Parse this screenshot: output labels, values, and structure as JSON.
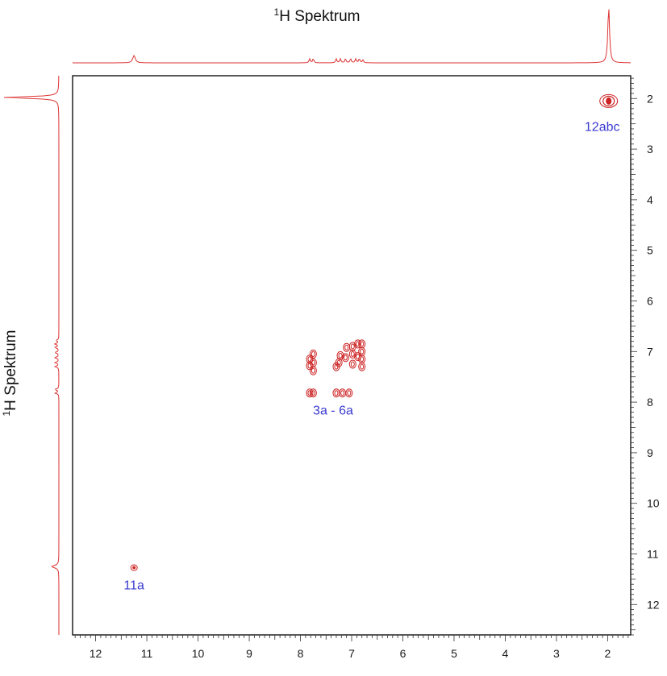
{
  "chart_data": {
    "type": "scatter",
    "title": "",
    "top_projection_label": {
      "sup": "1",
      "text": "H Spektrum"
    },
    "left_projection_label": {
      "sup": "1",
      "text": "H Spektrum"
    },
    "xlabel": "",
    "ylabel": "",
    "xlim": [
      12.45,
      1.55
    ],
    "ylim": [
      1.55,
      12.6
    ],
    "x_ticks": [
      12,
      11,
      10,
      9,
      8,
      7,
      6,
      5,
      4,
      3,
      2
    ],
    "y_ticks": [
      2,
      3,
      4,
      5,
      6,
      7,
      8,
      9,
      10,
      11,
      12
    ],
    "grid": false,
    "colors": {
      "contour": "#cc2222",
      "projection": "#dd3333",
      "label": "#3a3ad0",
      "axis": "#000000"
    },
    "peaks": [
      {
        "x": 1.98,
        "y": 2.05,
        "label": "12abc"
      },
      {
        "x": 11.25,
        "y": 11.27,
        "label": "11a"
      },
      {
        "x": 7.3,
        "y": 7.3,
        "label": "3a - 6a"
      }
    ],
    "cross_peaks": [
      {
        "x": 7.82,
        "y": 7.15
      },
      {
        "x": 7.82,
        "y": 7.28
      },
      {
        "x": 7.82,
        "y": 7.82
      },
      {
        "x": 7.75,
        "y": 7.05
      },
      {
        "x": 7.75,
        "y": 7.22
      },
      {
        "x": 7.75,
        "y": 7.38
      },
      {
        "x": 7.75,
        "y": 7.82
      },
      {
        "x": 7.3,
        "y": 7.3
      },
      {
        "x": 7.25,
        "y": 7.22
      },
      {
        "x": 7.3,
        "y": 7.82
      },
      {
        "x": 7.22,
        "y": 7.08
      },
      {
        "x": 7.18,
        "y": 7.82
      },
      {
        "x": 7.12,
        "y": 7.12
      },
      {
        "x": 7.1,
        "y": 6.92
      },
      {
        "x": 7.05,
        "y": 7.82
      },
      {
        "x": 6.98,
        "y": 6.9
      },
      {
        "x": 6.98,
        "y": 7.05
      },
      {
        "x": 6.98,
        "y": 7.25
      },
      {
        "x": 6.88,
        "y": 7.1
      },
      {
        "x": 6.88,
        "y": 6.85
      },
      {
        "x": 6.8,
        "y": 6.85
      },
      {
        "x": 6.8,
        "y": 7.0
      },
      {
        "x": 6.8,
        "y": 7.15
      },
      {
        "x": 6.8,
        "y": 7.3
      }
    ],
    "projection_peaks": [
      {
        "ppm": 1.98,
        "height": 1.0,
        "width": 0.02
      },
      {
        "ppm": 11.25,
        "height": 0.13,
        "width": 0.03
      },
      {
        "ppm": 7.82,
        "height": 0.07,
        "width": 0.015
      },
      {
        "ppm": 7.75,
        "height": 0.07,
        "width": 0.015
      },
      {
        "ppm": 7.3,
        "height": 0.07,
        "width": 0.015
      },
      {
        "ppm": 7.22,
        "height": 0.07,
        "width": 0.015
      },
      {
        "ppm": 7.12,
        "height": 0.07,
        "width": 0.015
      },
      {
        "ppm": 7.02,
        "height": 0.07,
        "width": 0.015
      },
      {
        "ppm": 6.92,
        "height": 0.07,
        "width": 0.015
      },
      {
        "ppm": 6.85,
        "height": 0.07,
        "width": 0.015
      },
      {
        "ppm": 6.78,
        "height": 0.05,
        "width": 0.015
      }
    ]
  }
}
